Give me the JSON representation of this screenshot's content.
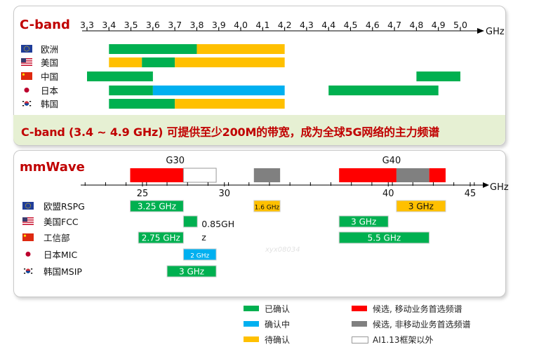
{
  "cband": {
    "title": "C-band",
    "caption": "C-band (3.4 ~ 4.9 GHz) 可提供至少200M的带宽，成为全球5G网络的主力频谱",
    "axis_unit": "GHz"
  },
  "mmwave": {
    "title": "mmWave",
    "axis_unit": "GHz",
    "group_labels": [
      "G30",
      "G40"
    ]
  },
  "legend": [
    {
      "label": "已确认",
      "color": "#00b050"
    },
    {
      "label": "确认中",
      "color": "#00b0f0"
    },
    {
      "label": "待确认",
      "color": "#ffc000"
    },
    {
      "label": "候选, 移动业务首选频谱",
      "color": "#ff0000"
    },
    {
      "label": "候选, 非移动业务首选频谱",
      "color": "#808080"
    },
    {
      "label": "AI1.13框架以外",
      "color": "#ffffff"
    }
  ],
  "watermark": "xyx08034",
  "chart_data": [
    {
      "type": "bar",
      "title": "C-band",
      "xlabel": "GHz",
      "xticks": [
        "3,3",
        "3,4",
        "3,5",
        "3,6",
        "3,7",
        "3,8",
        "3,9",
        "4,0",
        "4,1",
        "4,2",
        "4,3",
        "4,4",
        "4,5",
        "4,6",
        "4,7",
        "4,8",
        "4,9",
        "5,0"
      ],
      "xlim": [
        3.3,
        5.0
      ],
      "categories": [
        "欧洲",
        "美国",
        "中国",
        "日本",
        "韩国"
      ],
      "flags": [
        "eu",
        "us",
        "cn",
        "jp",
        "kr"
      ],
      "colors": {
        "confirmed": "#00b050",
        "in_confirmation": "#00b0f0",
        "to_confirm": "#ffc000"
      },
      "segments": [
        {
          "row": 0,
          "from": 3.4,
          "to": 3.8,
          "status": "confirmed"
        },
        {
          "row": 0,
          "from": 3.8,
          "to": 4.2,
          "status": "to_confirm"
        },
        {
          "row": 1,
          "from": 3.4,
          "to": 3.55,
          "status": "to_confirm"
        },
        {
          "row": 1,
          "from": 3.55,
          "to": 3.7,
          "status": "confirmed"
        },
        {
          "row": 1,
          "from": 3.7,
          "to": 4.2,
          "status": "to_confirm"
        },
        {
          "row": 2,
          "from": 3.3,
          "to": 3.6,
          "status": "confirmed"
        },
        {
          "row": 2,
          "from": 4.8,
          "to": 5.0,
          "status": "confirmed"
        },
        {
          "row": 3,
          "from": 3.4,
          "to": 3.6,
          "status": "confirmed"
        },
        {
          "row": 3,
          "from": 3.6,
          "to": 4.2,
          "status": "in_confirmation"
        },
        {
          "row": 3,
          "from": 4.4,
          "to": 4.9,
          "status": "confirmed"
        },
        {
          "row": 4,
          "from": 3.4,
          "to": 3.7,
          "status": "confirmed"
        },
        {
          "row": 4,
          "from": 3.7,
          "to": 4.2,
          "status": "to_confirm"
        }
      ]
    },
    {
      "type": "bar",
      "title": "mmWave",
      "xlabel": "GHz",
      "xticks": [
        25,
        30,
        40,
        45
      ],
      "xlim": [
        21.5,
        47
      ],
      "categories": [
        "欧盟RSPG",
        "美国FCC",
        "工信部",
        "日本MIC",
        "韩国MSIP"
      ],
      "flags": [
        "eu",
        "us",
        "cn",
        "jp",
        "kr"
      ],
      "candidates": [
        {
          "from": 24.25,
          "to": 27.5,
          "kind": "mobile",
          "color": "#ff0000"
        },
        {
          "from": 27.5,
          "to": 29.5,
          "kind": "outside",
          "color": "#ffffff"
        },
        {
          "from": 31.8,
          "to": 33.4,
          "kind": "non_mobile",
          "color": "#808080"
        },
        {
          "from": 37.0,
          "to": 40.5,
          "kind": "mobile",
          "color": "#ff0000"
        },
        {
          "from": 40.5,
          "to": 42.5,
          "kind": "non_mobile",
          "color": "#808080"
        },
        {
          "from": 42.5,
          "to": 43.5,
          "kind": "mobile",
          "color": "#ff0000"
        }
      ],
      "segments": [
        {
          "row": 0,
          "from": 24.25,
          "to": 27.5,
          "status": "confirmed",
          "label": "3.25 GHz"
        },
        {
          "row": 0,
          "from": 31.8,
          "to": 33.4,
          "status": "to_confirm",
          "label": "1.6 GHz"
        },
        {
          "row": 0,
          "from": 40.5,
          "to": 43.5,
          "status": "to_confirm",
          "label": "3 GHz"
        },
        {
          "row": 1,
          "from": 27.5,
          "to": 28.35,
          "status": "confirmed",
          "label": "0.85GH z"
        },
        {
          "row": 1,
          "from": 37.0,
          "to": 40.0,
          "status": "confirmed",
          "label": "3 GHz"
        },
        {
          "row": 2,
          "from": 24.75,
          "to": 27.5,
          "status": "confirmed",
          "label": "2.75 GHz"
        },
        {
          "row": 2,
          "from": 37.0,
          "to": 42.5,
          "status": "confirmed",
          "label": "5.5 GHz"
        },
        {
          "row": 3,
          "from": 27.5,
          "to": 29.5,
          "status": "in_confirmation",
          "label": "2 GHz"
        },
        {
          "row": 4,
          "from": 26.5,
          "to": 29.5,
          "status": "confirmed",
          "label": "3 GHz"
        }
      ]
    }
  ]
}
